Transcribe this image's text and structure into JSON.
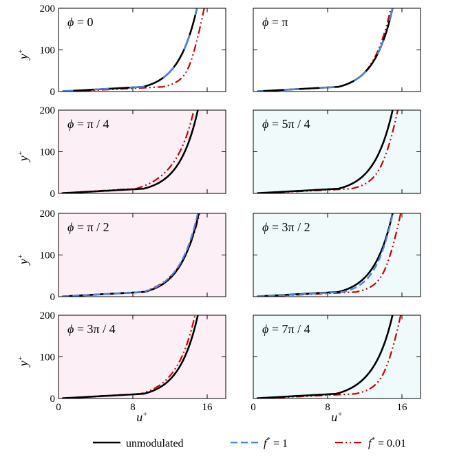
{
  "chart_data": {
    "type": "line",
    "layout": "4x2 grid of small-multiple line plots",
    "xlabel": "u",
    "xlabel_sup": "+",
    "ylabel": "y",
    "ylabel_sup": "+",
    "xlim": [
      0,
      18
    ],
    "ylim": [
      0,
      200
    ],
    "xticks": [
      0,
      8,
      16
    ],
    "xtick_labels": [
      "0",
      "8",
      "16"
    ],
    "yticks": [
      0,
      100,
      200
    ],
    "ytick_labels": [
      "0",
      "100",
      "200"
    ],
    "series_styles": [
      {
        "key": "unmod",
        "name": "unmodulated",
        "color": "#000000",
        "dash": "solid"
      },
      {
        "key": "f1",
        "name": "f* = 1",
        "color": "#4a86e8",
        "dash": "dashed"
      },
      {
        "key": "f001",
        "name": "f* = 0.01",
        "color": "#cc0000",
        "dash": "dash-dot-dot"
      }
    ],
    "legend": {
      "position": "bottom",
      "entries": [
        {
          "key": "unmod",
          "text": "unmodulated"
        },
        {
          "key": "f1",
          "base": "f",
          "sup": "*",
          "tail": " = 1"
        },
        {
          "key": "f001",
          "base": "f",
          "sup": "*",
          "tail": " = 0.01"
        }
      ]
    },
    "panels": [
      {
        "phase_symbol": "ϕ",
        "phase_value": " = 0",
        "background": "#ffffff",
        "series": {
          "unmod": {
            "u_plus_at_top": 14.9,
            "bulge": 0.0
          },
          "f1": {
            "u_plus_at_top": 14.9,
            "bulge": 0.0,
            "overlays": "unmod"
          },
          "f001": {
            "u_plus_at_top": 15.6,
            "bulge": 1.0
          }
        }
      },
      {
        "phase_symbol": "ϕ",
        "phase_value": " = π",
        "background": "#ffffff",
        "series": {
          "unmod": {
            "u_plus_at_top": 15.0,
            "bulge": 0.0
          },
          "f1": {
            "u_plus_at_top": 15.0,
            "bulge": 0.0,
            "overlays": "unmod"
          },
          "f001": {
            "u_plus_at_top": 14.8,
            "bulge": 0.1
          }
        }
      },
      {
        "phase_symbol": "ϕ",
        "phase_value": " = π / 4",
        "background": "#fdeff6",
        "series": {
          "unmod": {
            "u_plus_at_top": 15.0,
            "bulge": 0.0
          },
          "f001": {
            "u_plus_at_top": 14.6,
            "bulge": -0.35
          }
        }
      },
      {
        "phase_symbol": "ϕ",
        "phase_value": " = 5π / 4",
        "background": "#f0fafa",
        "series": {
          "unmod": {
            "u_plus_at_top": 15.0,
            "bulge": 0.0
          },
          "f001": {
            "u_plus_at_top": 15.5,
            "bulge": 0.65
          }
        }
      },
      {
        "phase_symbol": "ϕ",
        "phase_value": " = π / 2",
        "background": "#fdeff6",
        "series": {
          "unmod": {
            "u_plus_at_top": 15.1,
            "bulge": 0.0
          },
          "f1": {
            "u_plus_at_top": 15.0,
            "bulge": -0.05
          },
          "f001": {
            "u_plus_at_top": 15.2,
            "bulge": -0.2
          }
        }
      },
      {
        "phase_symbol": "ϕ",
        "phase_value": " = 3π / 2",
        "background": "#f0fafa",
        "series": {
          "unmod": {
            "u_plus_at_top": 15.0,
            "bulge": 0.0
          },
          "f1": {
            "u_plus_at_top": 15.0,
            "bulge": 0.3
          },
          "f001": {
            "u_plus_at_top": 15.8,
            "bulge": 0.85
          }
        }
      },
      {
        "phase_symbol": "ϕ",
        "phase_value": " = 3π / 4",
        "background": "#fdeff6",
        "series": {
          "unmod": {
            "u_plus_at_top": 15.0,
            "bulge": 0.0
          },
          "f001": {
            "u_plus_at_top": 14.7,
            "bulge": -0.1
          }
        }
      },
      {
        "phase_symbol": "ϕ",
        "phase_value": " = 7π / 4",
        "background": "#f0fafa",
        "series": {
          "unmod": {
            "u_plus_at_top": 15.0,
            "bulge": -0.15
          },
          "f001": {
            "u_plus_at_top": 15.8,
            "bulge": 0.8
          }
        }
      }
    ]
  }
}
